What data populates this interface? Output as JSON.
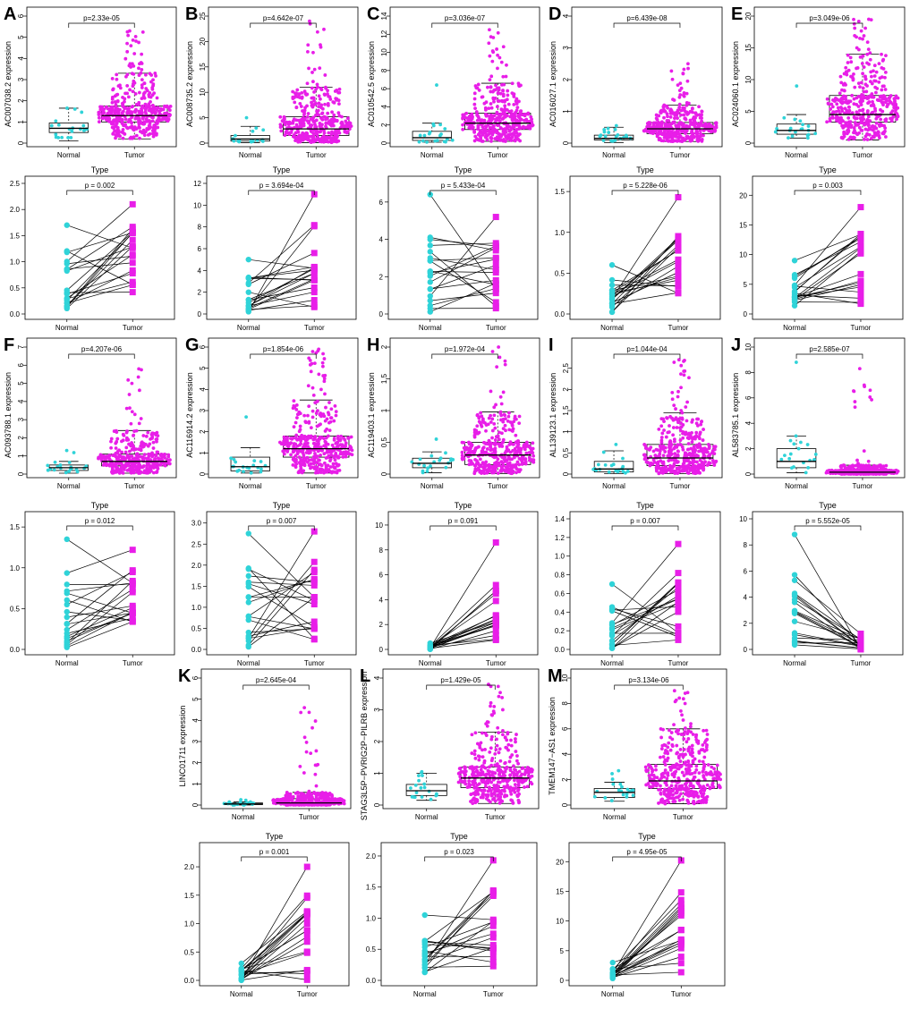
{
  "figure": {
    "colors": {
      "normal": "#2fd3d8",
      "tumor": "#e81ee8",
      "axis": "#000000"
    },
    "type_label": "Type",
    "group_labels": [
      "Normal",
      "Tumor"
    ]
  },
  "chart_data": [
    {
      "letter": "A",
      "gene": "AC007038.2",
      "box": {
        "type": "beeswarm-box",
        "ylabel": "AC007038.2 expression",
        "ylim": [
          0,
          6
        ],
        "yticks": [
          0,
          1,
          2,
          3,
          4,
          5,
          6
        ],
        "pvalue": "p=2.33e-05",
        "normal": {
          "q1": 0.5,
          "median": 0.7,
          "q3": 0.95,
          "low": 0.1,
          "high": 1.65,
          "max": 1.65,
          "n": 20
        },
        "tumor": {
          "q1": 1.0,
          "median": 1.3,
          "q3": 1.75,
          "low": 0.2,
          "high": 3.3,
          "max": 5.3,
          "n": 400
        }
      },
      "paired": {
        "type": "paired-line",
        "xlabel": "Type",
        "ylim": [
          0,
          2.5
        ],
        "yticks": [
          0.0,
          0.5,
          1.0,
          1.5,
          2.0,
          2.5
        ],
        "pvalue": "p = 0.002",
        "normal_range": [
          0.1,
          1.7
        ],
        "tumor_range": [
          0.4,
          2.1
        ],
        "n": 20
      }
    },
    {
      "letter": "B",
      "gene": "AC008735.2",
      "box": {
        "type": "beeswarm-box",
        "ylabel": "AC008735.2 expression",
        "ylim": [
          0,
          25
        ],
        "yticks": [
          0,
          5,
          10,
          15,
          20,
          25
        ],
        "pvalue": "p=4.642e-07",
        "normal": {
          "q1": 0.4,
          "median": 0.8,
          "q3": 1.5,
          "low": 0.1,
          "high": 3.3,
          "max": 5,
          "n": 20
        },
        "tumor": {
          "q1": 1.5,
          "median": 2.8,
          "q3": 5.2,
          "low": 0.1,
          "high": 11,
          "max": 24,
          "n": 400
        }
      },
      "paired": {
        "type": "paired-line",
        "xlabel": "Type",
        "ylim": [
          0,
          12
        ],
        "yticks": [
          0,
          2,
          4,
          6,
          8,
          10,
          12
        ],
        "pvalue": "p = 3.694e-04",
        "normal_range": [
          0.1,
          5
        ],
        "tumor_range": [
          0.5,
          11
        ],
        "n": 20
      }
    },
    {
      "letter": "C",
      "gene": "AC010542.5",
      "box": {
        "type": "beeswarm-box",
        "ylabel": "AC010542.5 expression",
        "ylim": [
          0,
          14
        ],
        "yticks": [
          0,
          2,
          4,
          6,
          8,
          10,
          12,
          14
        ],
        "pvalue": "p=3.036e-07",
        "normal": {
          "q1": 0.3,
          "median": 0.6,
          "q3": 1.3,
          "low": 0.1,
          "high": 2.2,
          "max": 6.4,
          "n": 20
        },
        "tumor": {
          "q1": 1.5,
          "median": 2.2,
          "q3": 3.3,
          "low": 0.2,
          "high": 6.6,
          "max": 12.5,
          "n": 400
        }
      },
      "paired": {
        "type": "paired-line",
        "xlabel": "Type",
        "ylim": [
          0,
          7
        ],
        "yticks": [
          0,
          2,
          4,
          6
        ],
        "pvalue": "p = 5.433e-04",
        "normal_range": [
          0.1,
          6.4
        ],
        "tumor_range": [
          0.3,
          5.2
        ],
        "n": 20
      }
    },
    {
      "letter": "D",
      "gene": "AC016027.1",
      "box": {
        "type": "beeswarm-box",
        "ylabel": "AC016027.1 expression",
        "ylim": [
          0,
          4
        ],
        "yticks": [
          0,
          1,
          2,
          3,
          4
        ],
        "pvalue": "p=6.439e-08",
        "normal": {
          "q1": 0.1,
          "median": 0.15,
          "q3": 0.25,
          "low": 0.02,
          "high": 0.5,
          "max": 0.55,
          "n": 20
        },
        "tumor": {
          "q1": 0.3,
          "median": 0.45,
          "q3": 0.65,
          "low": 0.05,
          "high": 1.2,
          "max": 2.5,
          "n": 400
        }
      },
      "paired": {
        "type": "paired-line",
        "xlabel": "Type",
        "ylim": [
          0,
          1.6
        ],
        "yticks": [
          0.0,
          0.5,
          1.0,
          1.5
        ],
        "pvalue": "p = 5.228e-06",
        "normal_range": [
          0.02,
          0.6
        ],
        "tumor_range": [
          0.15,
          1.43
        ],
        "n": 20
      }
    },
    {
      "letter": "E",
      "gene": "AC024060.1",
      "box": {
        "type": "beeswarm-box",
        "ylabel": "AC024060.1 expression",
        "ylim": [
          0,
          20
        ],
        "yticks": [
          0,
          5,
          10,
          15,
          20
        ],
        "pvalue": "p=3.049e-06",
        "normal": {
          "q1": 1.4,
          "median": 2.0,
          "q3": 3.0,
          "low": 0.8,
          "high": 4.5,
          "max": 9,
          "n": 20
        },
        "tumor": {
          "q1": 3.3,
          "median": 4.5,
          "q3": 7.5,
          "low": 0.5,
          "high": 14,
          "max": 19.5,
          "n": 400
        }
      },
      "paired": {
        "type": "paired-line",
        "xlabel": "Type",
        "ylim": [
          0,
          22
        ],
        "yticks": [
          0,
          5,
          10,
          15,
          20
        ],
        "pvalue": "p = 0.003",
        "normal_range": [
          1,
          9
        ],
        "tumor_range": [
          1.5,
          18
        ],
        "n": 20
      }
    },
    {
      "letter": "F",
      "gene": "AC093788.1",
      "box": {
        "type": "beeswarm-box",
        "ylabel": "AC093788.1 expression",
        "ylim": [
          0,
          7
        ],
        "yticks": [
          0,
          1,
          2,
          3,
          4,
          5,
          6,
          7
        ],
        "pvalue": "p=4.207e-06",
        "normal": {
          "q1": 0.2,
          "median": 0.35,
          "q3": 0.5,
          "low": 0.05,
          "high": 0.7,
          "max": 1.3,
          "n": 20
        },
        "tumor": {
          "q1": 0.45,
          "median": 0.7,
          "q3": 1.1,
          "low": 0.05,
          "high": 2.4,
          "max": 5.8,
          "n": 400
        }
      },
      "paired": {
        "type": "paired-line",
        "xlabel": "Type",
        "ylim": [
          0,
          1.6
        ],
        "yticks": [
          0.0,
          0.5,
          1.0,
          1.5
        ],
        "pvalue": "p = 0.012",
        "normal_range": [
          0.02,
          1.35
        ],
        "tumor_range": [
          0.3,
          1.22
        ],
        "n": 20
      }
    },
    {
      "letter": "G",
      "gene": "AC116914.2",
      "box": {
        "type": "beeswarm-box",
        "ylabel": "AC116914.2 expression",
        "ylim": [
          0,
          6
        ],
        "yticks": [
          0,
          1,
          2,
          3,
          4,
          5,
          6
        ],
        "pvalue": "p=1.854e-06",
        "normal": {
          "q1": 0.15,
          "median": 0.35,
          "q3": 0.8,
          "low": 0.05,
          "high": 1.25,
          "max": 2.7,
          "n": 20
        },
        "tumor": {
          "q1": 0.8,
          "median": 1.2,
          "q3": 1.8,
          "low": 0.05,
          "high": 3.5,
          "max": 5.9,
          "n": 400
        }
      },
      "paired": {
        "type": "paired-line",
        "xlabel": "Type",
        "ylim": [
          0,
          3.1
        ],
        "yticks": [
          0.0,
          0.5,
          1.0,
          1.5,
          2.0,
          2.5,
          3.0
        ],
        "pvalue": "p = 0.007",
        "normal_range": [
          0.05,
          2.75
        ],
        "tumor_range": [
          0.2,
          2.8
        ],
        "n": 20
      }
    },
    {
      "letter": "H",
      "gene": "AC119403.1",
      "box": {
        "type": "beeswarm-box",
        "ylabel": "AC119403.1 expression",
        "ylim": [
          0,
          2.0
        ],
        "yticks": [
          0.0,
          0.5,
          1.0,
          1.5,
          2.0
        ],
        "pvalue": "p=1.972e-04",
        "normal": {
          "q1": 0.1,
          "median": 0.17,
          "q3": 0.25,
          "low": 0.02,
          "high": 0.35,
          "max": 0.55,
          "n": 20
        },
        "tumor": {
          "q1": 0.15,
          "median": 0.3,
          "q3": 0.5,
          "low": 0.01,
          "high": 0.98,
          "max": 2.0,
          "n": 400
        }
      },
      "paired": {
        "type": "paired-line",
        "xlabel": "Type",
        "ylim": [
          0,
          10.5
        ],
        "yticks": [
          0,
          2,
          4,
          6,
          8,
          10
        ],
        "pvalue": "p = 0.091",
        "normal_range": [
          0.02,
          0.5
        ],
        "tumor_range": [
          0.05,
          8.6
        ],
        "n": 20
      }
    },
    {
      "letter": "I",
      "gene": "AL139123.1",
      "box": {
        "type": "beeswarm-box",
        "ylabel": "AL139123.1 expression",
        "ylim": [
          0,
          3
        ],
        "yticks": [
          0.0,
          0.5,
          1.0,
          1.5,
          2.0,
          2.5
        ],
        "pvalue": "p=1.044e-04",
        "normal": {
          "q1": 0.05,
          "median": 0.12,
          "q3": 0.3,
          "low": 0.01,
          "high": 0.55,
          "max": 0.7,
          "n": 20
        },
        "tumor": {
          "q1": 0.2,
          "median": 0.38,
          "q3": 0.7,
          "low": 0.01,
          "high": 1.45,
          "max": 2.7,
          "n": 400
        }
      },
      "paired": {
        "type": "paired-line",
        "xlabel": "Type",
        "ylim": [
          0,
          1.4
        ],
        "yticks": [
          0.0,
          0.2,
          0.4,
          0.6,
          0.8,
          1.0,
          1.2,
          1.4
        ],
        "pvalue": "p = 0.007",
        "normal_range": [
          0.01,
          0.7
        ],
        "tumor_range": [
          0.05,
          1.13
        ],
        "n": 20
      }
    },
    {
      "letter": "J",
      "gene": "AL583785.1",
      "box": {
        "type": "beeswarm-box",
        "ylabel": "AL583785.1 expression",
        "ylim": [
          0,
          10
        ],
        "yticks": [
          0,
          2,
          4,
          6,
          8,
          10
        ],
        "pvalue": "p=2.585e-07",
        "normal": {
          "q1": 0.5,
          "median": 1.0,
          "q3": 2.0,
          "low": 0.1,
          "high": 3.0,
          "max": 8.8,
          "n": 20
        },
        "tumor": {
          "q1": 0.05,
          "median": 0.15,
          "q3": 0.3,
          "low": 0.0,
          "high": 0.7,
          "max": 8.3,
          "n": 400
        }
      },
      "paired": {
        "type": "paired-line",
        "xlabel": "Type",
        "ylim": [
          0,
          10
        ],
        "yticks": [
          0,
          2,
          4,
          6,
          8,
          10
        ],
        "pvalue": "p = 5.552e-05",
        "normal_range": [
          0.1,
          8.8
        ],
        "tumor_range": [
          0.0,
          1.2
        ],
        "n": 20
      }
    },
    {
      "letter": "K",
      "gene": "LINC01711",
      "box": {
        "type": "beeswarm-box",
        "ylabel": "LINC01711 expression",
        "ylim": [
          0,
          6
        ],
        "yticks": [
          0,
          1,
          2,
          3,
          4,
          5,
          6
        ],
        "pvalue": "p=2.645e-04",
        "normal": {
          "q1": 0.02,
          "median": 0.05,
          "q3": 0.1,
          "low": 0.0,
          "high": 0.15,
          "max": 0.25,
          "n": 20
        },
        "tumor": {
          "q1": 0.05,
          "median": 0.1,
          "q3": 0.3,
          "low": 0.0,
          "high": 0.6,
          "max": 4.6,
          "n": 400
        }
      },
      "paired": {
        "type": "paired-line",
        "xlabel": "Type",
        "ylim": [
          0,
          2.3
        ],
        "yticks": [
          0.0,
          0.5,
          1.0,
          1.5,
          2.0
        ],
        "pvalue": "p = 0.001",
        "normal_range": [
          0.0,
          0.3
        ],
        "tumor_range": [
          0.0,
          2.0
        ],
        "n": 20
      }
    },
    {
      "letter": "L",
      "gene": "STAG3L5P-PVRIG2P-PILRB",
      "box": {
        "type": "beeswarm-box",
        "ylabel": "STAG3L5P−PVRIG2P−PILRB expression",
        "ylim": [
          0,
          4
        ],
        "yticks": [
          0,
          1,
          2,
          3,
          4
        ],
        "pvalue": "p=1.429e-05",
        "normal": {
          "q1": 0.3,
          "median": 0.45,
          "q3": 0.65,
          "low": 0.15,
          "high": 1.0,
          "max": 1.05,
          "n": 20
        },
        "tumor": {
          "q1": 0.55,
          "median": 0.85,
          "q3": 1.2,
          "low": 0.05,
          "high": 2.3,
          "max": 3.8,
          "n": 400
        }
      },
      "paired": {
        "type": "paired-line",
        "xlabel": "Type",
        "ylim": [
          0,
          2.1
        ],
        "yticks": [
          0.0,
          0.5,
          1.0,
          1.5,
          2.0
        ],
        "pvalue": "p = 0.023",
        "normal_range": [
          0.1,
          1.05
        ],
        "tumor_range": [
          0.2,
          1.93
        ],
        "n": 20
      }
    },
    {
      "letter": "M",
      "gene": "TMEM147-AS1",
      "box": {
        "type": "beeswarm-box",
        "ylabel": "TMEM147−AS1 expression",
        "ylim": [
          0,
          10
        ],
        "yticks": [
          0,
          2,
          4,
          6,
          8,
          10
        ],
        "pvalue": "p=3.134e-06",
        "normal": {
          "q1": 0.6,
          "median": 1.0,
          "q3": 1.3,
          "low": 0.3,
          "high": 1.8,
          "max": 2.7,
          "n": 20
        },
        "tumor": {
          "q1": 1.3,
          "median": 1.9,
          "q3": 3.2,
          "low": 0.1,
          "high": 6.0,
          "max": 9.0,
          "n": 400
        }
      },
      "paired": {
        "type": "paired-line",
        "xlabel": "Type",
        "ylim": [
          0,
          22
        ],
        "yticks": [
          0,
          5,
          10,
          15,
          20
        ],
        "pvalue": "p = 4.95e-05",
        "normal_range": [
          0.3,
          3
        ],
        "tumor_range": [
          1,
          20.2
        ],
        "n": 20
      }
    }
  ]
}
